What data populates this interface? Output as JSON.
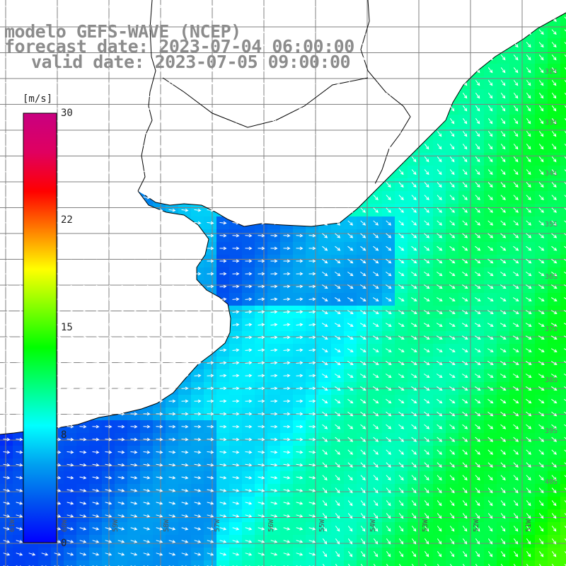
{
  "title": {
    "line1": "modelo GEFS-WAVE (NCEP)",
    "line2": "forecast date: 2023-07-04 06:00:00",
    "line3": "valid date: 2023-07-05 09:00:00"
  },
  "colorbar": {
    "unit": "[m/s]",
    "ticks": [
      "30",
      "22",
      "15",
      "8",
      "0"
    ],
    "min": 0,
    "max": 30,
    "colors": [
      "#0000ff",
      "#0050f0",
      "#00a0f0",
      "#00ffff",
      "#00ff80",
      "#00ff00",
      "#80ff00",
      "#ffff00",
      "#ff8000",
      "#ff0000",
      "#e00060",
      "#c80080"
    ]
  },
  "map": {
    "land_color": "#ffffff",
    "grid_color": "#808080",
    "coast_color": "#000000",
    "lon_labels": [
      "61W",
      "60W",
      "59W",
      "58W",
      "57W",
      "56W",
      "55W",
      "54W",
      "53W",
      "52W",
      "51W"
    ],
    "lat_labels": [
      "32S",
      "33S",
      "34S",
      "35S",
      "36S",
      "37S",
      "38S",
      "39S",
      "40S"
    ]
  }
}
